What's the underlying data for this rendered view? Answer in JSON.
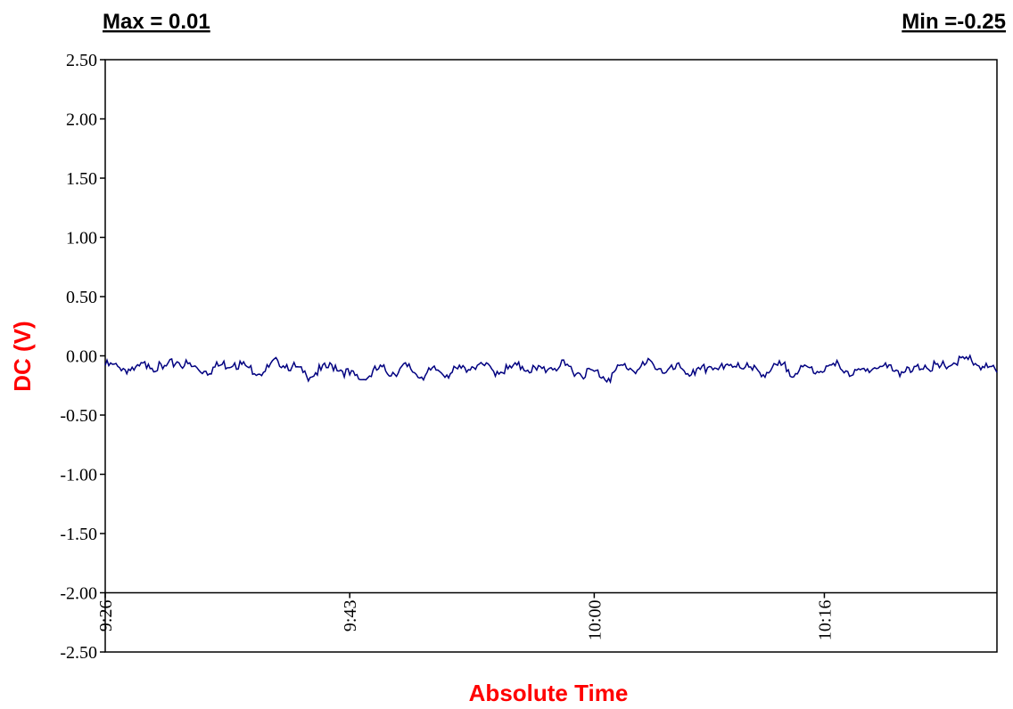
{
  "header": {
    "max_label": "Max = 0.01",
    "min_label": "Min =-0.25"
  },
  "colors": {
    "series": "#000080",
    "axis_title": "#ff0000",
    "frame": "#000000"
  },
  "chart_data": {
    "type": "line",
    "title": "",
    "xlabel": "Absolute Time",
    "ylabel": "DC (V)",
    "ylim": [
      -2.5,
      2.5
    ],
    "yticks": [
      2.5,
      2.0,
      1.5,
      1.0,
      0.5,
      0.0,
      -0.5,
      -1.0,
      -1.5,
      -2.0,
      -2.5
    ],
    "ytick_labels": [
      "2.50",
      "2.00",
      "1.50",
      "1.00",
      "0.50",
      "0.00",
      "-0.50",
      "-1.00",
      "-1.50",
      "-2.00",
      "-2.50"
    ],
    "x_axis_at": -2.0,
    "x_range": [
      "9:26",
      "10:28"
    ],
    "xticks": [
      "9:26",
      "9:43",
      "10:00",
      "10:16"
    ],
    "grid": false,
    "legend": "none",
    "series": [
      {
        "x": [
          "9:26",
          "9:27",
          "9:28",
          "9:29",
          "9:30",
          "9:31",
          "9:32",
          "9:33",
          "9:34",
          "9:35",
          "9:36",
          "9:37",
          "9:38",
          "9:39",
          "9:40",
          "9:41",
          "9:42",
          "9:43",
          "9:44",
          "9:45",
          "9:46",
          "9:47",
          "9:48",
          "9:49",
          "9:50",
          "9:51",
          "9:52",
          "9:53",
          "9:54",
          "9:55",
          "9:56",
          "9:57",
          "9:58",
          "9:59",
          "10:00",
          "10:01",
          "10:02",
          "10:03",
          "10:04",
          "10:05",
          "10:06",
          "10:07",
          "10:08",
          "10:09",
          "10:10",
          "10:11",
          "10:12",
          "10:13",
          "10:14",
          "10:15",
          "10:16",
          "10:17",
          "10:18",
          "10:19",
          "10:20",
          "10:21",
          "10:22",
          "10:23",
          "10:24",
          "10:25",
          "10:26",
          "10:27",
          "10:28"
        ],
        "y": [
          -0.08,
          -0.1,
          -0.12,
          -0.07,
          -0.11,
          -0.05,
          -0.09,
          -0.13,
          -0.08,
          -0.06,
          -0.1,
          -0.14,
          -0.04,
          -0.09,
          -0.17,
          -0.12,
          -0.08,
          -0.16,
          -0.2,
          -0.11,
          -0.14,
          -0.09,
          -0.18,
          -0.12,
          -0.15,
          -0.1,
          -0.07,
          -0.13,
          -0.11,
          -0.09,
          -0.12,
          -0.1,
          -0.08,
          -0.15,
          -0.13,
          -0.19,
          -0.08,
          -0.12,
          -0.05,
          -0.14,
          -0.1,
          -0.16,
          -0.09,
          -0.11,
          -0.06,
          -0.12,
          -0.14,
          -0.08,
          -0.15,
          -0.1,
          -0.13,
          -0.07,
          -0.16,
          -0.11,
          -0.09,
          -0.12,
          -0.14,
          -0.08,
          -0.1,
          -0.06,
          -0.03,
          -0.09,
          -0.14
        ]
      }
    ]
  }
}
